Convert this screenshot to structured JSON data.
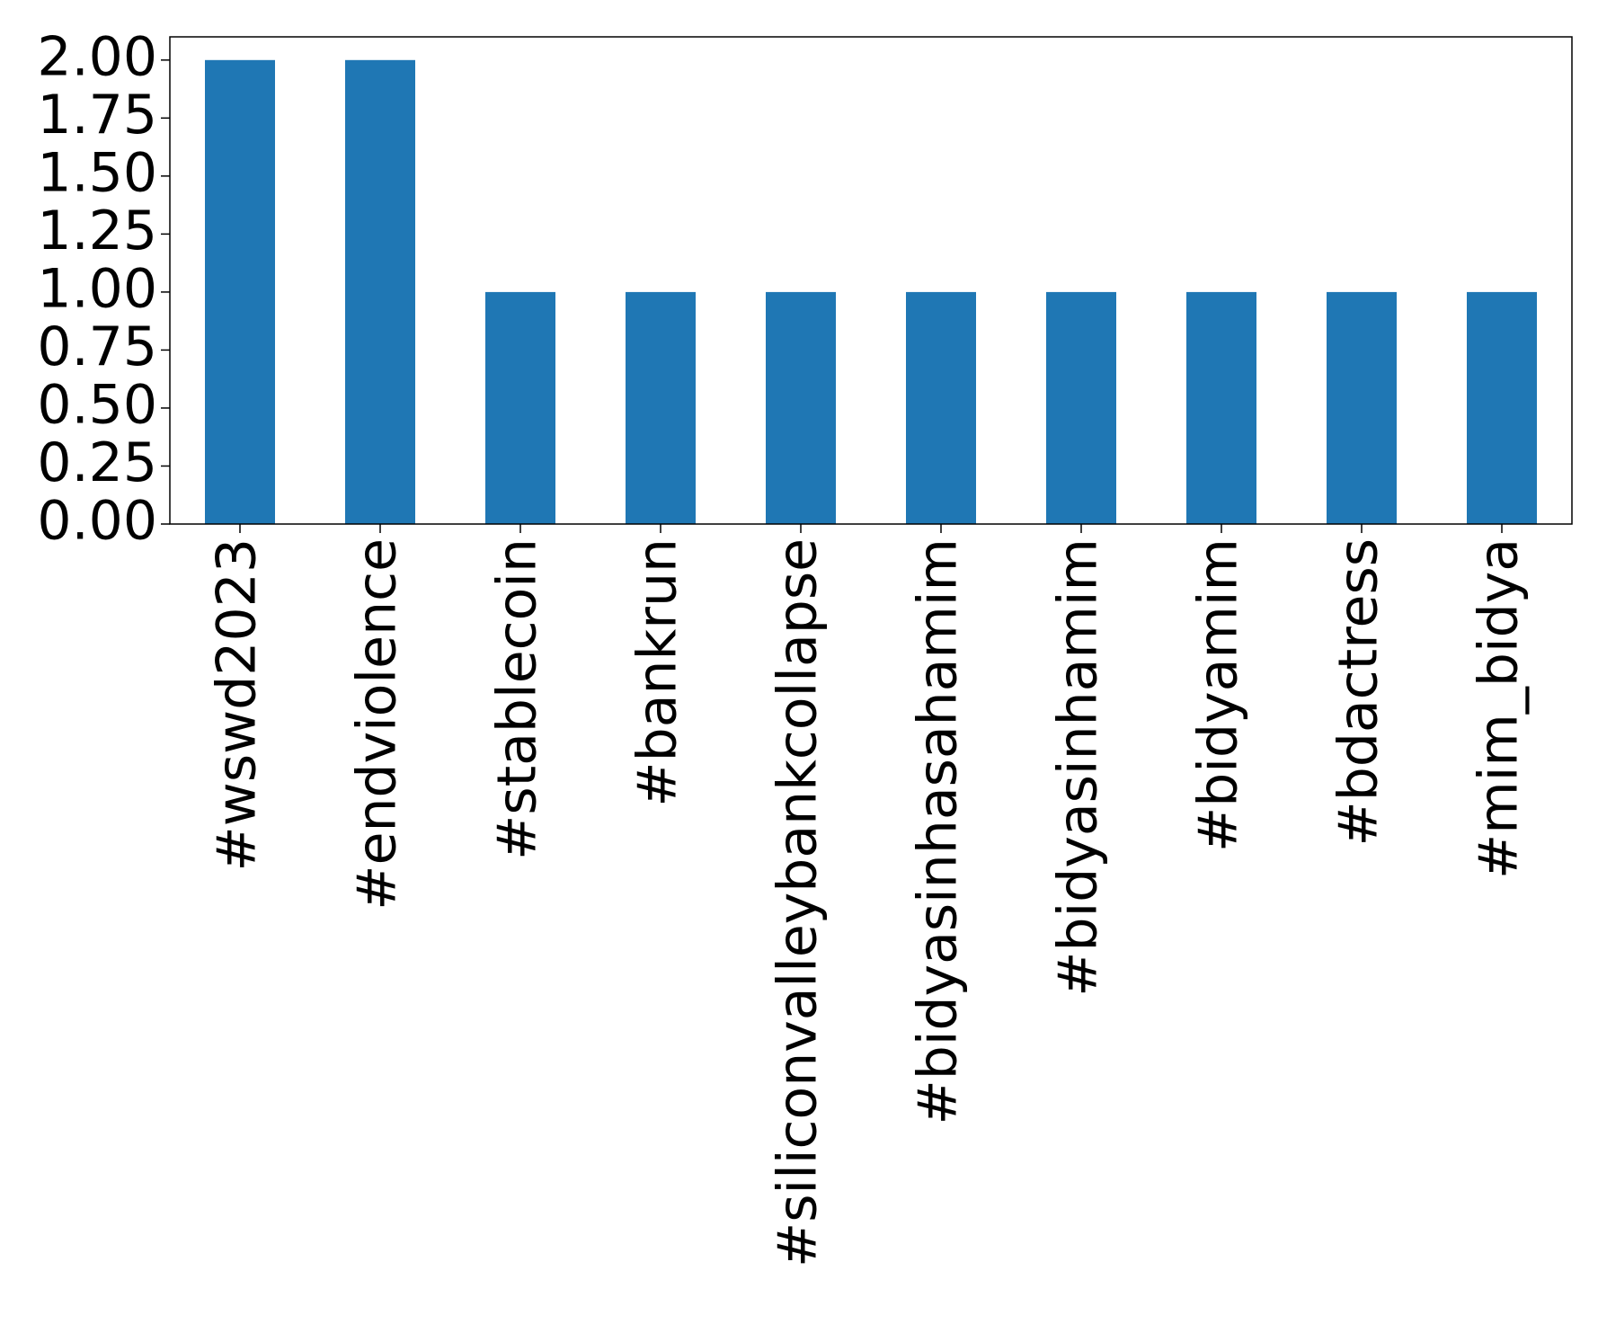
{
  "chart_data": {
    "type": "bar",
    "categories": [
      "#wswd2023",
      "#endviolence",
      "#stablecoin",
      "#bankrun",
      "#siliconvalleybankcollapse",
      "#bidyasinhasahamim",
      "#bidyasinhamim",
      "#bidyamim",
      "#bdactress",
      "#mim_bidya"
    ],
    "values": [
      2,
      2,
      1,
      1,
      1,
      1,
      1,
      1,
      1,
      1
    ],
    "color": "#1f77b4",
    "ylim": [
      0,
      2.1
    ],
    "yticks": [
      {
        "value": 0,
        "label": "0.00"
      },
      {
        "value": 0.25,
        "label": "0.25"
      },
      {
        "value": 0.5,
        "label": "0.50"
      },
      {
        "value": 0.75,
        "label": "0.75"
      },
      {
        "value": 1,
        "label": "1.00"
      },
      {
        "value": 1.25,
        "label": "1.25"
      },
      {
        "value": 1.5,
        "label": "1.50"
      },
      {
        "value": 1.75,
        "label": "1.75"
      },
      {
        "value": 2,
        "label": "2.00"
      }
    ],
    "grid": false
  }
}
